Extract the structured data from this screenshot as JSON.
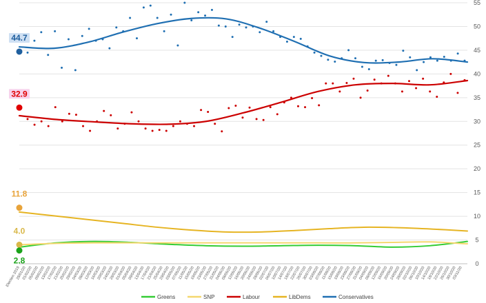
{
  "chart_data": {
    "type": "line",
    "title": "",
    "xlabel": "",
    "ylabel": "",
    "ylim": [
      0,
      55
    ],
    "yticks": [
      0,
      5,
      10,
      15,
      20,
      25,
      30,
      35,
      40,
      45,
      50,
      55
    ],
    "grid": "horizontal",
    "legend_position": "bottom",
    "x_tick_labels": [
      "Election 2019",
      "28/01/20",
      "01/02/20",
      "05/02/20",
      "09/02/20",
      "13/02/20",
      "17/02/20",
      "21/02/20",
      "25/02/20",
      "29/02/20",
      "04/03/20",
      "08/03/20",
      "12/03/20",
      "16/03/20",
      "20/03/20",
      "24/03/20",
      "28/03/20",
      "01/04/20",
      "05/04/20",
      "09/04/20",
      "13/04/20",
      "17/04/20",
      "21/04/20",
      "25/04/20",
      "29/04/20",
      "03/05/20",
      "07/05/20",
      "11/05/20",
      "15/05/20",
      "19/05/20",
      "23/05/20",
      "27/05/20",
      "31/05/20",
      "04/06/20",
      "08/06/20",
      "12/06/20",
      "16/06/20",
      "20/06/20",
      "24/06/20",
      "28/06/20",
      "02/07/20",
      "06/07/20",
      "10/07/20",
      "14/07/20",
      "18/07/20",
      "22/07/20",
      "26/07/20",
      "30/07/20",
      "03/08/20",
      "07/08/20",
      "11/08/20",
      "15/08/20",
      "19/08/20",
      "23/08/20",
      "27/08/20",
      "31/08/20",
      "04/09/20",
      "08/09/20",
      "12/09/20",
      "16/09/20",
      "20/09/20",
      "24/09/20",
      "28/09/20",
      "02/10/20",
      "06/10/20",
      "10/10/20",
      "14/10/20",
      "18/10/20",
      "22/10/20",
      "26/10/20",
      "30/10/20",
      "03/11/20"
    ],
    "start_labels": [
      {
        "series": "Conservatives",
        "value": "44.7",
        "color": "#1f5f9e",
        "y": 44.7
      },
      {
        "series": "Labour",
        "value": "32.9",
        "color": "#e00000",
        "y": 32.9
      },
      {
        "series": "LibDems",
        "value": "11.8",
        "color": "#e8a33a",
        "y": 11.8
      },
      {
        "series": "SNP",
        "value": "4.0",
        "color": "#d9b84a",
        "y": 4.0
      },
      {
        "series": "Greens",
        "value": "2.8",
        "color": "#1aa31a",
        "y": 2.8
      }
    ],
    "series": [
      {
        "name": "Greens",
        "color": "#33cc33",
        "trend": [
          3.5,
          4.4,
          4.7,
          4.5,
          4.1,
          3.8,
          3.7,
          3.8,
          3.9,
          3.8,
          3.5,
          3.8,
          4.7
        ]
      },
      {
        "name": "SNP",
        "color": "#f5d76e",
        "trend": [
          4.0,
          4.3,
          4.4,
          4.4,
          4.4,
          4.4,
          4.4,
          4.4,
          4.4,
          4.4,
          4.5,
          4.6,
          4.2
        ]
      },
      {
        "name": "Labour",
        "color": "#cc0000",
        "trend": [
          31.2,
          30.4,
          29.9,
          29.5,
          29.4,
          30.0,
          31.8,
          34.0,
          36.3,
          37.7,
          38.0,
          37.7,
          38.6
        ],
        "points": [
          30.5,
          29.3,
          30.0,
          29.0,
          33.0,
          30.0,
          31.6,
          31.4,
          29.0,
          28.0,
          30.0,
          32.2,
          31.3,
          28.5,
          29.5,
          31.9,
          30.0,
          28.5,
          28.0,
          28.2,
          28.0,
          29.0,
          30.0,
          29.5,
          29.0,
          32.4,
          32.0,
          29.5,
          27.9,
          32.8,
          33.3,
          30.8,
          32.9,
          30.5,
          30.3,
          33.0,
          31.5,
          34.0,
          35.0,
          33.2,
          33.0,
          34.9,
          33.4,
          38.0,
          38.0,
          36.3,
          38.1,
          39.0,
          35.0,
          36.5,
          38.8,
          38.0,
          39.6,
          38.0,
          36.3,
          38.5,
          37.0,
          39.0,
          36.3,
          35.2,
          38.2,
          40.0,
          36.0,
          38.7
        ]
      },
      {
        "name": "LibDems",
        "color": "#e6b422",
        "trend": [
          10.9,
          10.1,
          9.3,
          8.5,
          7.7,
          7.1,
          6.7,
          6.7,
          7.0,
          7.4,
          7.7,
          7.6,
          7.3,
          6.9
        ]
      },
      {
        "name": "Conservatives",
        "color": "#1f6fb2",
        "trend": [
          45.7,
          45.4,
          46.7,
          48.8,
          50.6,
          51.7,
          51.6,
          49.6,
          46.8,
          43.8,
          42.4,
          42.5,
          43.2,
          42.5
        ],
        "points": [
          44.5,
          47.0,
          48.8,
          44.0,
          49.0,
          41.3,
          47.3,
          40.8,
          48.0,
          49.5,
          47.0,
          47.3,
          45.4,
          49.8,
          49.0,
          51.8,
          47.5,
          54.0,
          54.4,
          51.8,
          49.0,
          52.5,
          46.0,
          55.0,
          51.3,
          53.0,
          52.3,
          53.5,
          50.2,
          50.0,
          47.8,
          50.4,
          49.8,
          50.0,
          48.8,
          51.0,
          49.0,
          47.8,
          46.8,
          47.8,
          47.4,
          45.8,
          44.5,
          43.8,
          43.0,
          42.6,
          43.3,
          45.0,
          43.3,
          41.5,
          41.0,
          42.8,
          42.9,
          42.3,
          41.9,
          44.9,
          43.5,
          40.8,
          42.5,
          43.5,
          42.8,
          43.6,
          42.8,
          44.3,
          42.8
        ]
      }
    ],
    "legend": [
      "Greens",
      "SNP",
      "Labour",
      "LibDems",
      "Conservatives"
    ]
  }
}
